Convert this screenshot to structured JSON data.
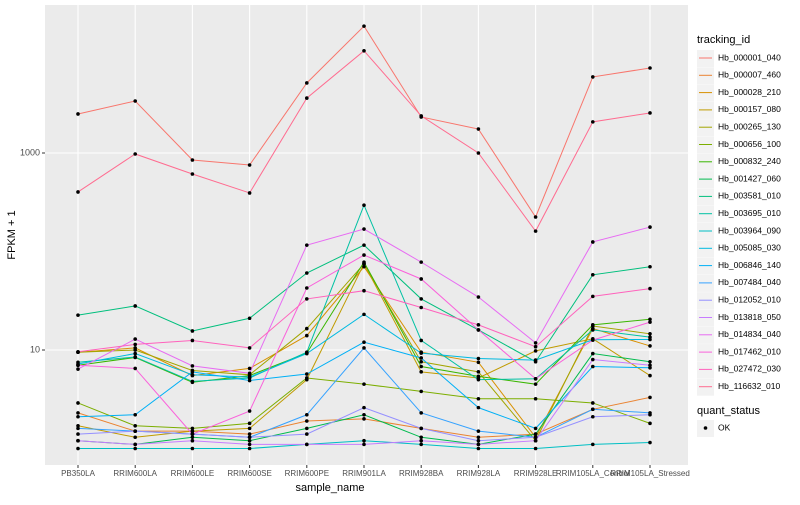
{
  "chart_data": {
    "type": "line",
    "log_scale": true,
    "grid": true,
    "x_label": "sample_name",
    "y_label": "FPKM + 1",
    "legend_title": "tracking_id",
    "point_legend_title": "quant_status",
    "point_legend_labels": [
      "OK"
    ],
    "point_color": "#000000",
    "categories": [
      "PB350LA",
      "RRIM600LA",
      "RRIM600LE",
      "RRIM600SE",
      "RRIM600PE",
      "RRIM901LA",
      "RRIM928BA",
      "RRIM928LA",
      "RRIM928LE",
      "RRIM105LA_Control",
      "RRIM105LA_Stressed"
    ],
    "ylim": [
      0.68,
      31800
    ],
    "yticks": [
      10,
      1000
    ],
    "series": [
      {
        "name": "Hb_000001_040",
        "color": "#F8766D",
        "values": [
          2490,
          3370,
          849,
          755,
          5140,
          19400,
          2320,
          1750,
          224,
          5920,
          7290
        ]
      },
      {
        "name": "Hb_000007_460",
        "color": "#EA8331",
        "values": [
          2.3,
          1.5,
          1.5,
          1.4,
          1.9,
          2.0,
          1.6,
          1.3,
          1.4,
          2.5,
          3.3
        ]
      },
      {
        "name": "Hb_000028_210",
        "color": "#D89000",
        "values": [
          9.5,
          10.5,
          5.5,
          6.5,
          14,
          70,
          9.5,
          7.5,
          1.3,
          16.5,
          11
        ]
      },
      {
        "name": "Hb_000157_080",
        "color": "#C09B00",
        "values": [
          1.7,
          1.3,
          1.5,
          1.6,
          5,
          75,
          6,
          5.2,
          9.8,
          13,
          5.5
        ]
      },
      {
        "name": "Hb_000265_130",
        "color": "#A3A500",
        "values": [
          9.5,
          10,
          6.2,
          5.6,
          16.5,
          75,
          7.6,
          6,
          1.2,
          17.5,
          14.6
        ]
      },
      {
        "name": "Hb_000656_100",
        "color": "#7CAE00",
        "values": [
          2.9,
          1.7,
          1.6,
          1.8,
          5.2,
          4.5,
          3.8,
          3.2,
          3.2,
          2.9,
          1.8
        ]
      },
      {
        "name": "Hb_000832_240",
        "color": "#39B600",
        "values": [
          7,
          8.4,
          4.7,
          5.5,
          9.3,
          78,
          6.8,
          5.4,
          4.5,
          18,
          20.5
        ]
      },
      {
        "name": "Hb_001427_060",
        "color": "#00BB4E",
        "values": [
          1.2,
          1.1,
          1.3,
          1.2,
          1.6,
          2.2,
          1.3,
          1.1,
          1.4,
          9.2,
          7.6
        ]
      },
      {
        "name": "Hb_003581_010",
        "color": "#00BF7D",
        "values": [
          22.6,
          28,
          15.6,
          21,
          60.5,
          116,
          33,
          16,
          7.6,
          58,
          70
        ]
      },
      {
        "name": "Hb_003695_010",
        "color": "#00C1A3",
        "values": [
          7.5,
          8.5,
          4.8,
          5.2,
          9.5,
          295,
          12.5,
          5,
          5.1,
          16,
          13.5
        ]
      },
      {
        "name": "Hb_003964_090",
        "color": "#00BFC4",
        "values": [
          1.0,
          1.0,
          1.0,
          1.0,
          1.1,
          1.2,
          1.1,
          1.0,
          1.0,
          1.1,
          1.15
        ]
      },
      {
        "name": "Hb_005085_030",
        "color": "#00BAE0",
        "values": [
          7.2,
          9.2,
          5.6,
          5.3,
          9.2,
          23,
          9.3,
          8.2,
          7.9,
          12.7,
          12.8
        ]
      },
      {
        "name": "Hb_006846_140",
        "color": "#00B0F6",
        "values": [
          2.1,
          2.2,
          6.0,
          4.9,
          5.7,
          12,
          8.3,
          2.6,
          1.6,
          6.8,
          6.6
        ]
      },
      {
        "name": "Hb_007484_040",
        "color": "#35A2FF",
        "values": [
          1.6,
          1.5,
          1.4,
          1.3,
          2.2,
          10.5,
          2.3,
          1.5,
          1.3,
          2.5,
          2.3
        ]
      },
      {
        "name": "Hb_012052_010",
        "color": "#9590FF",
        "values": [
          1.4,
          1.5,
          1.4,
          1.3,
          1.4,
          2.6,
          1.6,
          1.2,
          1.3,
          2.1,
          2.2
        ]
      },
      {
        "name": "Hb_013818_050",
        "color": "#C77CFF",
        "values": [
          1.2,
          1.1,
          1.2,
          1.1,
          1.1,
          1.1,
          1.2,
          1.1,
          1.2,
          8,
          7
        ]
      },
      {
        "name": "Hb_014834_040",
        "color": "#E76BF3",
        "values": [
          6.4,
          12.9,
          6.9,
          5.8,
          116,
          169,
          78,
          34.5,
          11.8,
          125,
          177
        ]
      },
      {
        "name": "Hb_017462_010",
        "color": "#FA62DB",
        "values": [
          7,
          6.5,
          1.4,
          2.4,
          42.6,
          92,
          52.6,
          16,
          5.1,
          12.6,
          19.2
        ]
      },
      {
        "name": "Hb_027472_030",
        "color": "#FF62BC",
        "values": [
          9.6,
          11.4,
          12.5,
          10.5,
          33,
          40,
          27,
          18,
          10.8,
          35,
          42
        ]
      },
      {
        "name": "Hb_116632_010",
        "color": "#FF6C90",
        "values": [
          402,
          977,
          612,
          393,
          3610,
          10900,
          2380,
          1000,
          161,
          2070,
          2550
        ]
      }
    ]
  }
}
